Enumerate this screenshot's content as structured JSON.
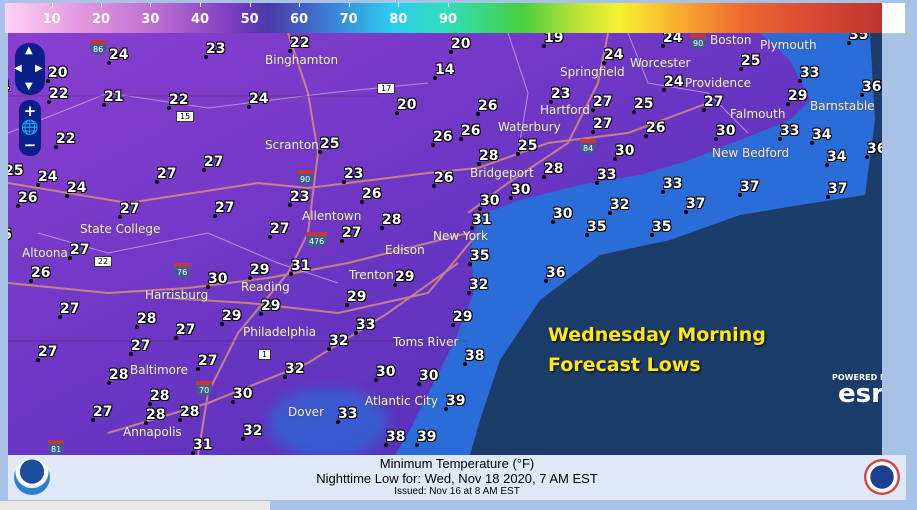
{
  "legend": {
    "ticks": [
      "10",
      "20",
      "30",
      "40",
      "50",
      "60",
      "70",
      "80",
      "90"
    ]
  },
  "overlay": {
    "line1": "Wednesday Morning",
    "line2": "Forecast Lows"
  },
  "esri": {
    "powered_by": "POWERED BY",
    "brand": "esri"
  },
  "footer": {
    "title": "Minimum Temperature (°F)",
    "valid": "Nighttime Low for: Wed, Nov 18 2020,   7 AM EST",
    "issued": "Issued: Nov 16 at 8 AM EST"
  },
  "controls": {
    "zoom_in": "+",
    "zoom_out": "−"
  },
  "cities": [
    "Binghamton",
    "Scranton",
    "State College",
    "Springfield",
    "Worcester",
    "Boston",
    "Hartford",
    "Providence",
    "Plymouth",
    "Barnstable",
    "New Bedford",
    "Falmouth",
    "Waterbury",
    "Bridgeport",
    "New York",
    "Allentown",
    "Altoona",
    "Edison",
    "Reading",
    "Harrisburg",
    "Trenton",
    "Philadelphia",
    "Toms River",
    "Baltimore",
    "Atlantic City",
    "Dover",
    "Annapolis"
  ],
  "shields": [
    "86",
    "17",
    "15",
    "90",
    "476",
    "84",
    "90",
    "22",
    "76",
    "1",
    "70",
    "81"
  ],
  "temperatures": [
    24,
    23,
    22,
    20,
    19,
    24,
    24,
    35,
    20,
    14,
    25,
    33,
    4,
    22,
    21,
    22,
    24,
    20,
    26,
    23,
    27,
    25,
    24,
    27,
    29,
    36,
    22,
    26,
    26,
    28,
    25,
    27,
    26,
    30,
    33,
    34,
    36,
    25,
    30,
    34,
    25,
    24,
    24,
    27,
    27,
    23,
    26,
    28,
    33,
    33,
    37,
    37,
    26,
    27,
    27,
    23,
    26,
    30,
    30,
    32,
    37,
    30,
    31,
    35,
    35,
    6,
    28,
    27,
    27,
    27,
    35,
    36,
    26,
    29,
    31,
    29,
    30,
    32,
    29,
    29,
    29,
    27,
    28,
    27,
    29,
    33,
    32,
    27,
    27,
    27,
    38,
    32,
    28,
    30,
    30,
    28,
    30,
    39,
    27,
    28,
    28,
    33,
    32,
    38,
    39,
    31
  ],
  "colors": {
    "land": "#6a35c4",
    "shelf": "#2a6cd8",
    "ocean": "#1c3c6a",
    "title": "#ffe816"
  }
}
